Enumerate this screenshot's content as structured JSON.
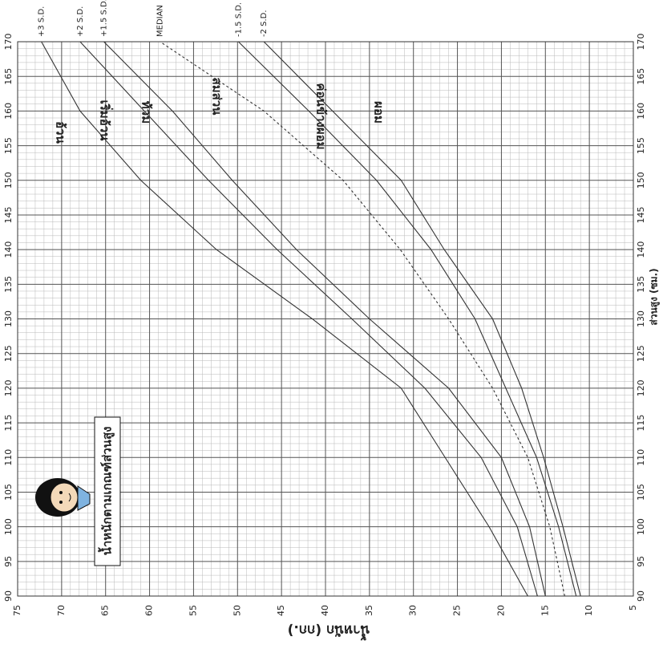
{
  "chart_data": {
    "type": "line",
    "title": "น้ำหนักตามเกณฑ์ส่วนสูง",
    "x_label": "ส่วนสูง (ซม.)",
    "y_label": "น้ำหนัก (กก.)",
    "x": [
      90,
      100,
      110,
      120,
      130,
      140,
      150,
      160,
      170
    ],
    "xlim": [
      90,
      170
    ],
    "xticks": [
      90,
      95,
      100,
      105,
      110,
      115,
      120,
      125,
      130,
      135,
      140,
      145,
      150,
      155,
      160,
      165,
      170
    ],
    "ylim": [
      5,
      75
    ],
    "yticks": [
      5,
      10,
      15,
      20,
      25,
      30,
      35,
      40,
      45,
      50,
      55,
      60,
      65,
      70,
      75
    ],
    "grid": true,
    "series": [
      {
        "name": "+3 S.D.",
        "color": "#333333",
        "values": [
          17,
          21.4,
          26.4,
          31.4,
          41.5,
          52.4,
          61,
          67.9,
          72.3
        ]
      },
      {
        "name": "+2 S.D.",
        "color": "#333333",
        "values": [
          15.9,
          18.2,
          22.3,
          28.7,
          37,
          45.5,
          53.3,
          60.6,
          67.9
        ]
      },
      {
        "name": "+1.5 S.D.",
        "color": "#333333",
        "values": [
          15,
          16.8,
          20,
          26,
          35,
          43.3,
          50.6,
          57.4,
          65.2
        ]
      },
      {
        "name": "MEDIAN",
        "color": "#333333",
        "dashed": true,
        "values": [
          12.8,
          14.5,
          17,
          21,
          26,
          31.5,
          38,
          47,
          58.8
        ]
      },
      {
        "name": "-1.5 S.D.",
        "color": "#333333",
        "values": [
          11.5,
          13.5,
          16,
          19.5,
          23,
          28,
          34.2,
          41.9,
          49.9
        ]
      },
      {
        "name": "-2 S.D.",
        "color": "#333333",
        "values": [
          11,
          13,
          15.2,
          17.7,
          21,
          26.5,
          31.4,
          39.2,
          47
        ]
      }
    ],
    "annotations": [
      "อ้วน",
      "เริ่มอ้วน",
      "ท้วม",
      "สมส่วน",
      "ค่อนข้างผอม",
      "ผอม"
    ]
  }
}
